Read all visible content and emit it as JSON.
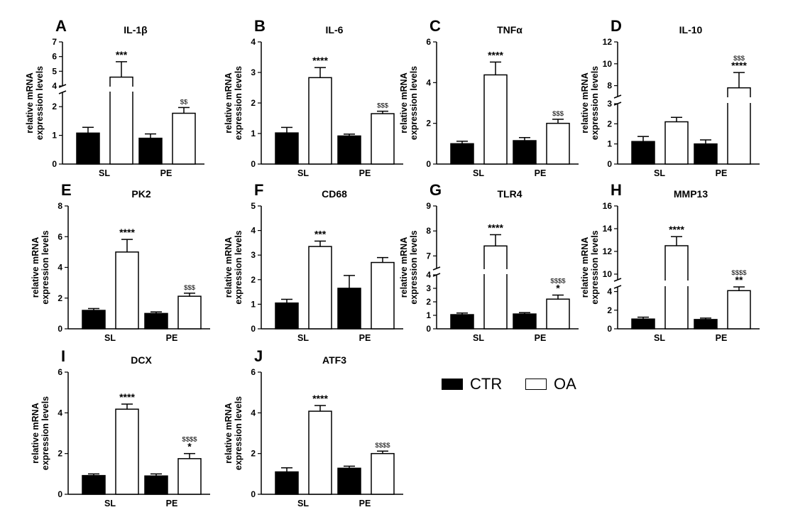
{
  "legend": {
    "items": [
      {
        "label": "CTR",
        "fill": "#000000"
      },
      {
        "label": "OA",
        "fill": "#ffffff"
      }
    ]
  },
  "axis_label_lines": [
    "relative mRNA",
    "expression levels"
  ],
  "chart_data": [
    {
      "panel": "A",
      "title": "IL-1β",
      "type": "bar",
      "categories": [
        "SL",
        "PE"
      ],
      "series": [
        {
          "name": "CTR",
          "values": [
            1.08,
            0.9
          ],
          "errors": [
            0.2,
            0.15
          ]
        },
        {
          "name": "OA",
          "values": [
            4.6,
            1.77
          ],
          "errors": [
            1.05,
            0.2
          ]
        }
      ],
      "y_axis": {
        "broken": true,
        "lower": {
          "range": [
            0,
            2.5
          ],
          "ticks": [
            0,
            1,
            2
          ]
        },
        "upper": {
          "range": [
            4,
            7
          ],
          "ticks": [
            4,
            5,
            6,
            7
          ]
        }
      },
      "annotations": [
        {
          "category": "SL",
          "series": "OA",
          "text": "***",
          "small": false
        },
        {
          "category": "PE",
          "series": "OA",
          "text": "$$",
          "small": true
        }
      ]
    },
    {
      "panel": "B",
      "title": "IL-6",
      "type": "bar",
      "categories": [
        "SL",
        "PE"
      ],
      "series": [
        {
          "name": "CTR",
          "values": [
            1.02,
            0.92
          ],
          "errors": [
            0.18,
            0.06
          ]
        },
        {
          "name": "OA",
          "values": [
            2.83,
            1.65
          ],
          "errors": [
            0.33,
            0.08
          ]
        }
      ],
      "y_axis": {
        "range": [
          0,
          4
        ],
        "ticks": [
          0,
          1,
          2,
          3,
          4
        ]
      },
      "annotations": [
        {
          "category": "SL",
          "series": "OA",
          "text": "****",
          "small": false
        },
        {
          "category": "PE",
          "series": "OA",
          "text": "$$$",
          "small": true
        }
      ]
    },
    {
      "panel": "C",
      "title": "TNFα",
      "type": "bar",
      "categories": [
        "SL",
        "PE"
      ],
      "series": [
        {
          "name": "CTR",
          "values": [
            1.0,
            1.15
          ],
          "errors": [
            0.12,
            0.15
          ]
        },
        {
          "name": "OA",
          "values": [
            4.38,
            2.0
          ],
          "errors": [
            0.63,
            0.2
          ]
        }
      ],
      "y_axis": {
        "range": [
          0,
          6
        ],
        "ticks": [
          0,
          2,
          4,
          6
        ]
      },
      "annotations": [
        {
          "category": "SL",
          "series": "OA",
          "text": "****",
          "small": false
        },
        {
          "category": "PE",
          "series": "OA",
          "text": "$$$",
          "small": true
        }
      ]
    },
    {
      "panel": "D",
      "title": "IL-10",
      "type": "bar",
      "categories": [
        "SL",
        "PE"
      ],
      "series": [
        {
          "name": "CTR",
          "values": [
            1.12,
            1.0
          ],
          "errors": [
            0.25,
            0.2
          ]
        },
        {
          "name": "OA",
          "values": [
            2.1,
            7.8
          ],
          "errors": [
            0.22,
            1.4
          ]
        }
      ],
      "y_axis": {
        "broken": true,
        "lower": {
          "range": [
            0,
            3
          ],
          "ticks": [
            0,
            1,
            2,
            3
          ]
        },
        "upper": {
          "range": [
            7,
            12
          ],
          "ticks": [
            8,
            10,
            12
          ]
        }
      },
      "annotations": [
        {
          "category": "PE",
          "series": "OA",
          "text": "****",
          "small": false
        },
        {
          "category": "PE",
          "series": "OA",
          "text": "$$$",
          "small": true
        }
      ]
    },
    {
      "panel": "E",
      "title": "PK2",
      "type": "bar",
      "categories": [
        "SL",
        "PE"
      ],
      "series": [
        {
          "name": "CTR",
          "values": [
            1.2,
            1.0
          ],
          "errors": [
            0.12,
            0.1
          ]
        },
        {
          "name": "OA",
          "values": [
            5.0,
            2.12
          ],
          "errors": [
            0.82,
            0.2
          ]
        }
      ],
      "y_axis": {
        "range": [
          0,
          8
        ],
        "ticks": [
          0,
          2,
          4,
          6,
          8
        ]
      },
      "annotations": [
        {
          "category": "SL",
          "series": "OA",
          "text": "****",
          "small": false
        },
        {
          "category": "PE",
          "series": "OA",
          "text": "$$$",
          "small": true
        }
      ]
    },
    {
      "panel": "F",
      "title": "CD68",
      "type": "bar",
      "categories": [
        "SL",
        "PE"
      ],
      "series": [
        {
          "name": "CTR",
          "values": [
            1.05,
            1.65
          ],
          "errors": [
            0.15,
            0.52
          ]
        },
        {
          "name": "OA",
          "values": [
            3.35,
            2.7
          ],
          "errors": [
            0.22,
            0.2
          ]
        }
      ],
      "y_axis": {
        "range": [
          0,
          5
        ],
        "ticks": [
          0,
          1,
          2,
          3,
          4,
          5
        ]
      },
      "annotations": [
        {
          "category": "SL",
          "series": "OA",
          "text": "***",
          "small": false
        }
      ]
    },
    {
      "panel": "G",
      "title": "TLR4",
      "type": "bar",
      "categories": [
        "SL",
        "PE"
      ],
      "series": [
        {
          "name": "CTR",
          "values": [
            1.05,
            1.1
          ],
          "errors": [
            0.12,
            0.1
          ]
        },
        {
          "name": "OA",
          "values": [
            7.4,
            2.2
          ],
          "errors": [
            0.45,
            0.3
          ]
        }
      ],
      "y_axis": {
        "broken": true,
        "lower": {
          "range": [
            0,
            4
          ],
          "ticks": [
            0,
            1,
            2,
            3,
            4
          ]
        },
        "upper": {
          "range": [
            6.5,
            9
          ],
          "ticks": [
            7,
            8,
            9
          ]
        }
      },
      "annotations": [
        {
          "category": "SL",
          "series": "OA",
          "text": "****",
          "small": false
        },
        {
          "category": "PE",
          "series": "OA",
          "text": "*",
          "small": false
        },
        {
          "category": "PE",
          "series": "OA",
          "text": "$$$$",
          "small": true
        }
      ]
    },
    {
      "panel": "H",
      "title": "MMP13",
      "type": "bar",
      "categories": [
        "SL",
        "PE"
      ],
      "series": [
        {
          "name": "CTR",
          "values": [
            1.05,
            1.0
          ],
          "errors": [
            0.2,
            0.15
          ]
        },
        {
          "name": "OA",
          "values": [
            12.5,
            4.1
          ],
          "errors": [
            0.8,
            0.45
          ]
        }
      ],
      "y_axis": {
        "broken": true,
        "lower": {
          "range": [
            0,
            4.5
          ],
          "ticks": [
            0,
            2,
            4
          ]
        },
        "upper": {
          "range": [
            9.5,
            16
          ],
          "ticks": [
            10,
            12,
            14,
            16
          ]
        }
      },
      "annotations": [
        {
          "category": "SL",
          "series": "OA",
          "text": "****",
          "small": false
        },
        {
          "category": "PE",
          "series": "OA",
          "text": "**",
          "small": false
        },
        {
          "category": "PE",
          "series": "OA",
          "text": "$$$$",
          "small": true
        }
      ]
    },
    {
      "panel": "I",
      "title": "DCX",
      "type": "bar",
      "categories": [
        "SL",
        "PE"
      ],
      "series": [
        {
          "name": "CTR",
          "values": [
            0.92,
            0.9
          ],
          "errors": [
            0.08,
            0.1
          ]
        },
        {
          "name": "OA",
          "values": [
            4.18,
            1.75
          ],
          "errors": [
            0.25,
            0.25
          ]
        }
      ],
      "y_axis": {
        "range": [
          0,
          6
        ],
        "ticks": [
          0,
          2,
          4,
          6
        ]
      },
      "annotations": [
        {
          "category": "SL",
          "series": "OA",
          "text": "****",
          "small": false
        },
        {
          "category": "PE",
          "series": "OA",
          "text": "*",
          "small": false
        },
        {
          "category": "PE",
          "series": "OA",
          "text": "$$$$",
          "small": true
        }
      ]
    },
    {
      "panel": "J",
      "title": "ATF3",
      "type": "bar",
      "categories": [
        "SL",
        "PE"
      ],
      "series": [
        {
          "name": "CTR",
          "values": [
            1.1,
            1.28
          ],
          "errors": [
            0.2,
            0.1
          ]
        },
        {
          "name": "OA",
          "values": [
            4.08,
            2.0
          ],
          "errors": [
            0.28,
            0.12
          ]
        }
      ],
      "y_axis": {
        "range": [
          0,
          6
        ],
        "ticks": [
          0,
          2,
          4,
          6
        ]
      },
      "annotations": [
        {
          "category": "SL",
          "series": "OA",
          "text": "****",
          "small": false
        },
        {
          "category": "PE",
          "series": "OA",
          "text": "$$$$",
          "small": true
        }
      ]
    }
  ]
}
